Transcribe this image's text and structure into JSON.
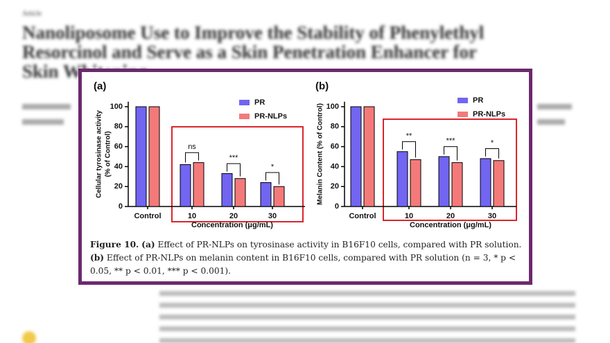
{
  "header": {
    "kind": "Article",
    "title_lines": [
      "Nanoliposome Use to Improve the Stability of Phenylethyl",
      "Resorcinol and Serve as a Skin Penetration Enhancer for",
      "Skin Whitening"
    ]
  },
  "chart_data": [
    {
      "type": "bar",
      "panel": "(a)",
      "categories": [
        "Control",
        "10",
        "20",
        "30"
      ],
      "series": [
        {
          "name": "PR",
          "color": "#7165f2",
          "values": [
            100,
            42,
            33,
            24
          ]
        },
        {
          "name": "PR-NLPs",
          "color": "#f47a7a",
          "values": [
            100,
            44,
            28,
            20
          ]
        }
      ],
      "ylim": [
        0,
        105
      ],
      "yticks": [
        0,
        20,
        40,
        60,
        80,
        100
      ],
      "x_label": "Concentration (μg/mL)",
      "y_label_lines": [
        "Cellular tyrosinase activity",
        "(% of Control)"
      ],
      "annotations": [
        {
          "text": "ns",
          "category": 1
        },
        {
          "text": "***",
          "category": 2
        },
        {
          "text": "*",
          "category": 3
        }
      ]
    },
    {
      "type": "bar",
      "panel": "(b)",
      "categories": [
        "Control",
        "10",
        "20",
        "30"
      ],
      "series": [
        {
          "name": "PR",
          "color": "#7165f2",
          "values": [
            100,
            55,
            50,
            48
          ]
        },
        {
          "name": "PR-NLPs",
          "color": "#f47a7a",
          "values": [
            100,
            47,
            44,
            46
          ]
        }
      ],
      "ylim": [
        0,
        105
      ],
      "yticks": [
        0,
        20,
        40,
        60,
        80,
        100
      ],
      "x_label": "Concentration (μg/mL)",
      "y_label_lines": [
        "Melanin Content (% of Control)"
      ],
      "annotations": [
        {
          "text": "**",
          "category": 1
        },
        {
          "text": "***",
          "category": 2
        },
        {
          "text": "*",
          "category": 3
        }
      ]
    }
  ],
  "caption": {
    "label": "Figure 10.",
    "a_label": "(a)",
    "a_text": " Effect of PR-NLPs on tyrosinase activity in B16F10 cells, compared with PR solution. ",
    "b_label": "(b)",
    "b_text": " Effect of PR-NLPs on melanin content in B16F10 cells, compared with PR solution (n = 3, * p < 0.05, ** p < 0.01, *** p < 0.001)."
  }
}
